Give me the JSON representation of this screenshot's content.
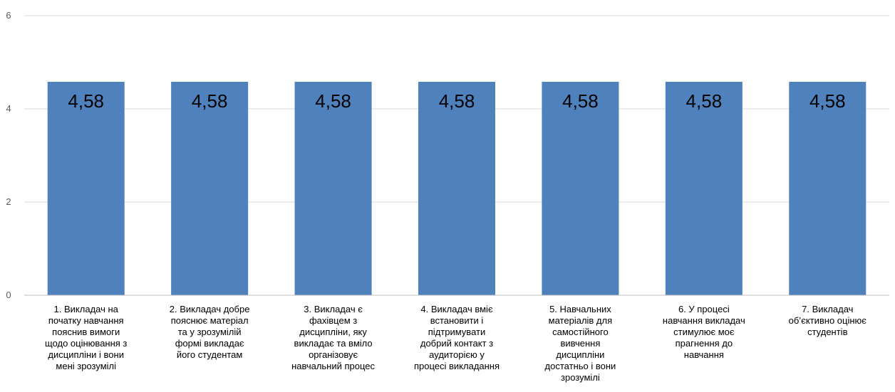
{
  "chart_data": {
    "type": "bar",
    "title": "",
    "xlabel": "",
    "ylabel": "",
    "ylim": [
      0,
      6
    ],
    "yticks": [
      "0",
      "2",
      "4",
      "6"
    ],
    "grid": true,
    "bar_color": "#4f81bd",
    "grid_color": "#d9d9d9",
    "categories": [
      [
        "1. Викладач на",
        "початку навчання",
        "пояснив вимоги",
        "щодо оцінювання з",
        "дисципліни і вони",
        "мені зрозумілі"
      ],
      [
        "2. Викладач добре",
        "пояснює матеріал",
        "та у зрозумілій",
        "формі викладає",
        "його студентам"
      ],
      [
        "3. Викладач є",
        "фахівцем з",
        "дисципліни, яку",
        "викладає та вміло",
        "організовує",
        "навчальний процес"
      ],
      [
        "4. Викладач вміє",
        "встановити і",
        "підтримувати",
        "добрий контакт з",
        "аудиторією у",
        "процесі викладання"
      ],
      [
        "5. Навчальних",
        "матеріалів для",
        "самостійного",
        "вивчення",
        "дисципліни",
        "достатньо і вони",
        "зрозумілі"
      ],
      [
        "6.  У процесі",
        "навчання викладач",
        "стимулює моє",
        "прагнення до",
        "навчання"
      ],
      [
        "7. Викладач",
        "об’єктивно оцінює",
        "студентів"
      ]
    ],
    "values": [
      4.58,
      4.58,
      4.58,
      4.58,
      4.58,
      4.58,
      4.58
    ],
    "data_labels": [
      "4,58",
      "4,58",
      "4,58",
      "4,58",
      "4,58",
      "4,58",
      "4,58"
    ]
  }
}
